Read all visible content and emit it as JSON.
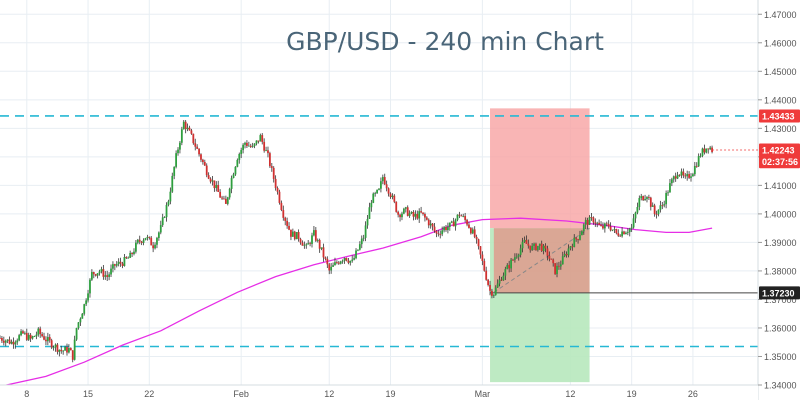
{
  "chart_data": {
    "type": "candlestick",
    "title": "GBP/USD - 240 min Chart",
    "ylim": [
      1.34,
      1.475
    ],
    "xlim": [
      0,
      198
    ],
    "y_ticks": [
      1.34,
      1.35,
      1.36,
      1.37,
      1.38,
      1.39,
      1.4,
      1.41,
      1.42,
      1.43,
      1.44,
      1.45,
      1.46,
      1.47
    ],
    "y_tick_labels": [
      "1.34000",
      "1.35000",
      "1.36000",
      "1.37000",
      "1.38000",
      "1.39000",
      "1.40000",
      "1.41000",
      "1.42000",
      "1.43000",
      "1.44000",
      "1.45000",
      "1.46000",
      "1.47000"
    ],
    "x_ticks": [
      {
        "x": 7,
        "label": "8"
      },
      {
        "x": 23,
        "label": "15"
      },
      {
        "x": 39,
        "label": "22"
      },
      {
        "x": 63,
        "label": "Feb"
      },
      {
        "x": 86,
        "label": "12"
      },
      {
        "x": 102,
        "label": "19"
      },
      {
        "x": 126,
        "label": "Mar"
      },
      {
        "x": 149,
        "label": "12"
      },
      {
        "x": 165,
        "label": "19"
      },
      {
        "x": 181,
        "label": "26"
      }
    ],
    "grid": true,
    "price_levels": [
      {
        "value": 1.43433,
        "label": "1.43433",
        "style": "dashed",
        "color": "#26b8d4",
        "tag_color": "#ef3a3a"
      },
      {
        "value": 1.3535,
        "label": "",
        "style": "dashed",
        "color": "#26b8d4"
      },
      {
        "value": 1.4224,
        "label": "1.42243",
        "style": "current",
        "color": "#ef3a3a",
        "tag_color": "#ef3a3a"
      },
      {
        "value": 1.3723,
        "label": "1.37230",
        "style": "marker",
        "color": "#222222",
        "tag_color": "#222222"
      }
    ],
    "countdown": {
      "value": 1.4183,
      "label": "02:37:56"
    },
    "ma_series": {
      "name": "",
      "color": "#e62ee6",
      "points": [
        [
          0,
          1.3395
        ],
        [
          12,
          1.343
        ],
        [
          22,
          1.348
        ],
        [
          32,
          1.354
        ],
        [
          42,
          1.359
        ],
        [
          52,
          1.366
        ],
        [
          62,
          1.3725
        ],
        [
          72,
          1.378
        ],
        [
          82,
          1.3822
        ],
        [
          92,
          1.3855
        ],
        [
          100,
          1.388
        ],
        [
          110,
          1.392
        ],
        [
          118,
          1.396
        ],
        [
          126,
          1.398
        ],
        [
          136,
          1.3985
        ],
        [
          148,
          1.3975
        ],
        [
          158,
          1.396
        ],
        [
          166,
          1.3945
        ],
        [
          174,
          1.3935
        ],
        [
          180,
          1.3935
        ],
        [
          186,
          1.395
        ]
      ]
    },
    "position_tool": {
      "x_start": 128,
      "x_end": 154,
      "entry": 1.395,
      "stop": 1.437,
      "target": 1.341,
      "marker": 1.3723,
      "loss_color": "#f7a3a3",
      "profit_color": "#b7e8bd"
    },
    "trend_line": {
      "from": [
        129,
        1.3725
      ],
      "to": [
        154,
        1.395
      ]
    },
    "close_path": [
      [
        0,
        1.3565
      ],
      [
        3,
        1.355
      ],
      [
        6,
        1.358
      ],
      [
        8,
        1.356
      ],
      [
        10,
        1.3585
      ],
      [
        12,
        1.356
      ],
      [
        14,
        1.354
      ],
      [
        16,
        1.352
      ],
      [
        18,
        1.3525
      ],
      [
        19,
        1.35
      ],
      [
        20,
        1.36
      ],
      [
        22,
        1.368
      ],
      [
        24,
        1.379
      ],
      [
        26,
        1.38
      ],
      [
        28,
        1.378
      ],
      [
        30,
        1.382
      ],
      [
        32,
        1.383
      ],
      [
        34,
        1.385
      ],
      [
        36,
        1.39
      ],
      [
        38,
        1.392
      ],
      [
        40,
        1.389
      ],
      [
        42,
        1.395
      ],
      [
        44,
        1.405
      ],
      [
        46,
        1.42
      ],
      [
        48,
        1.432
      ],
      [
        50,
        1.427
      ],
      [
        52,
        1.421
      ],
      [
        54,
        1.415
      ],
      [
        56,
        1.41
      ],
      [
        58,
        1.405
      ],
      [
        59,
        1.403
      ],
      [
        60,
        1.41
      ],
      [
        62,
        1.42
      ],
      [
        64,
        1.425
      ],
      [
        66,
        1.423
      ],
      [
        68,
        1.427
      ],
      [
        70,
        1.42
      ],
      [
        72,
        1.41
      ],
      [
        74,
        1.4
      ],
      [
        76,
        1.393
      ],
      [
        78,
        1.392
      ],
      [
        80,
        1.388
      ],
      [
        82,
        1.393
      ],
      [
        84,
        1.387
      ],
      [
        86,
        1.38
      ],
      [
        88,
        1.383
      ],
      [
        90,
        1.385
      ],
      [
        92,
        1.383
      ],
      [
        95,
        1.392
      ],
      [
        97,
        1.405
      ],
      [
        99,
        1.408
      ],
      [
        100,
        1.413
      ],
      [
        102,
        1.407
      ],
      [
        104,
        1.4
      ],
      [
        106,
        1.401
      ],
      [
        108,
        1.399
      ],
      [
        110,
        1.4
      ],
      [
        112,
        1.397
      ],
      [
        114,
        1.393
      ],
      [
        116,
        1.395
      ],
      [
        118,
        1.396
      ],
      [
        120,
        1.4
      ],
      [
        122,
        1.397
      ],
      [
        124,
        1.392
      ],
      [
        126,
        1.383
      ],
      [
        128,
        1.373
      ],
      [
        129,
        1.3723
      ],
      [
        131,
        1.378
      ],
      [
        133,
        1.382
      ],
      [
        135,
        1.386
      ],
      [
        137,
        1.39
      ],
      [
        139,
        1.388
      ],
      [
        141,
        1.389
      ],
      [
        143,
        1.386
      ],
      [
        145,
        1.38
      ],
      [
        147,
        1.384
      ],
      [
        149,
        1.389
      ],
      [
        151,
        1.392
      ],
      [
        153,
        1.397
      ],
      [
        155,
        1.398
      ],
      [
        157,
        1.395
      ],
      [
        159,
        1.396
      ],
      [
        161,
        1.393
      ],
      [
        163,
        1.394
      ],
      [
        165,
        1.395
      ],
      [
        167,
        1.405
      ],
      [
        169,
        1.407
      ],
      [
        171,
        1.4
      ],
      [
        173,
        1.403
      ],
      [
        175,
        1.41
      ],
      [
        177,
        1.415
      ],
      [
        179,
        1.412
      ],
      [
        181,
        1.415
      ],
      [
        183,
        1.421
      ],
      [
        185,
        1.424
      ],
      [
        186,
        1.4224
      ]
    ],
    "colors": {
      "up": "#2e9e3e",
      "down": "#d03030",
      "grid": "#e8eef3",
      "axis_text": "#555555",
      "title": "#4a6578"
    }
  }
}
